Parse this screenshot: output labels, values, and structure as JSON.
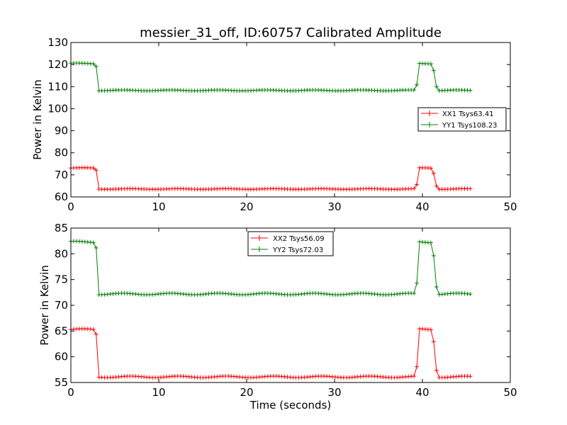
{
  "title": "messier_31_off, ID:60757 Calibrated Amplitude",
  "chart_data": [
    {
      "type": "line",
      "title": "messier_31_off, ID:60757 Calibrated Amplitude",
      "xlabel": "",
      "ylabel": "Power in Kelvin",
      "xlim": [
        0,
        50
      ],
      "ylim": [
        60,
        130
      ],
      "xticks": [
        "0",
        "10",
        "20",
        "30",
        "40",
        "50"
      ],
      "yticks": [
        "60",
        "70",
        "80",
        "90",
        "100",
        "110",
        "120",
        "130"
      ],
      "grid": false,
      "legend_position": "center-right",
      "low_value": 63.6,
      "high_value": 73.1,
      "series": [
        {
          "name": "XX1 Tsys63.41",
          "color": "#ff0000",
          "low": 63.6,
          "high": 73.1
        },
        {
          "name": "YY1 Tsys108.23",
          "color": "#008000",
          "low": 108.3,
          "high": 120.5
        }
      ]
    },
    {
      "type": "line",
      "title": "",
      "xlabel": "Time (seconds)",
      "ylabel": "Power in Kelvin",
      "xlim": [
        0,
        50
      ],
      "ylim": [
        55,
        85
      ],
      "xticks": [
        "0",
        "10",
        "20",
        "30",
        "40",
        "50"
      ],
      "yticks": [
        "55",
        "60",
        "65",
        "70",
        "75",
        "80",
        "85"
      ],
      "grid": false,
      "legend_position": "top-center",
      "series": [
        {
          "name": "XX2 Tsys56.09",
          "color": "#ff0000",
          "low": 56.1,
          "high": 65.3
        },
        {
          "name": "YY2 Tsys72.03",
          "color": "#008000",
          "low": 72.2,
          "high": 82.3
        }
      ]
    }
  ]
}
